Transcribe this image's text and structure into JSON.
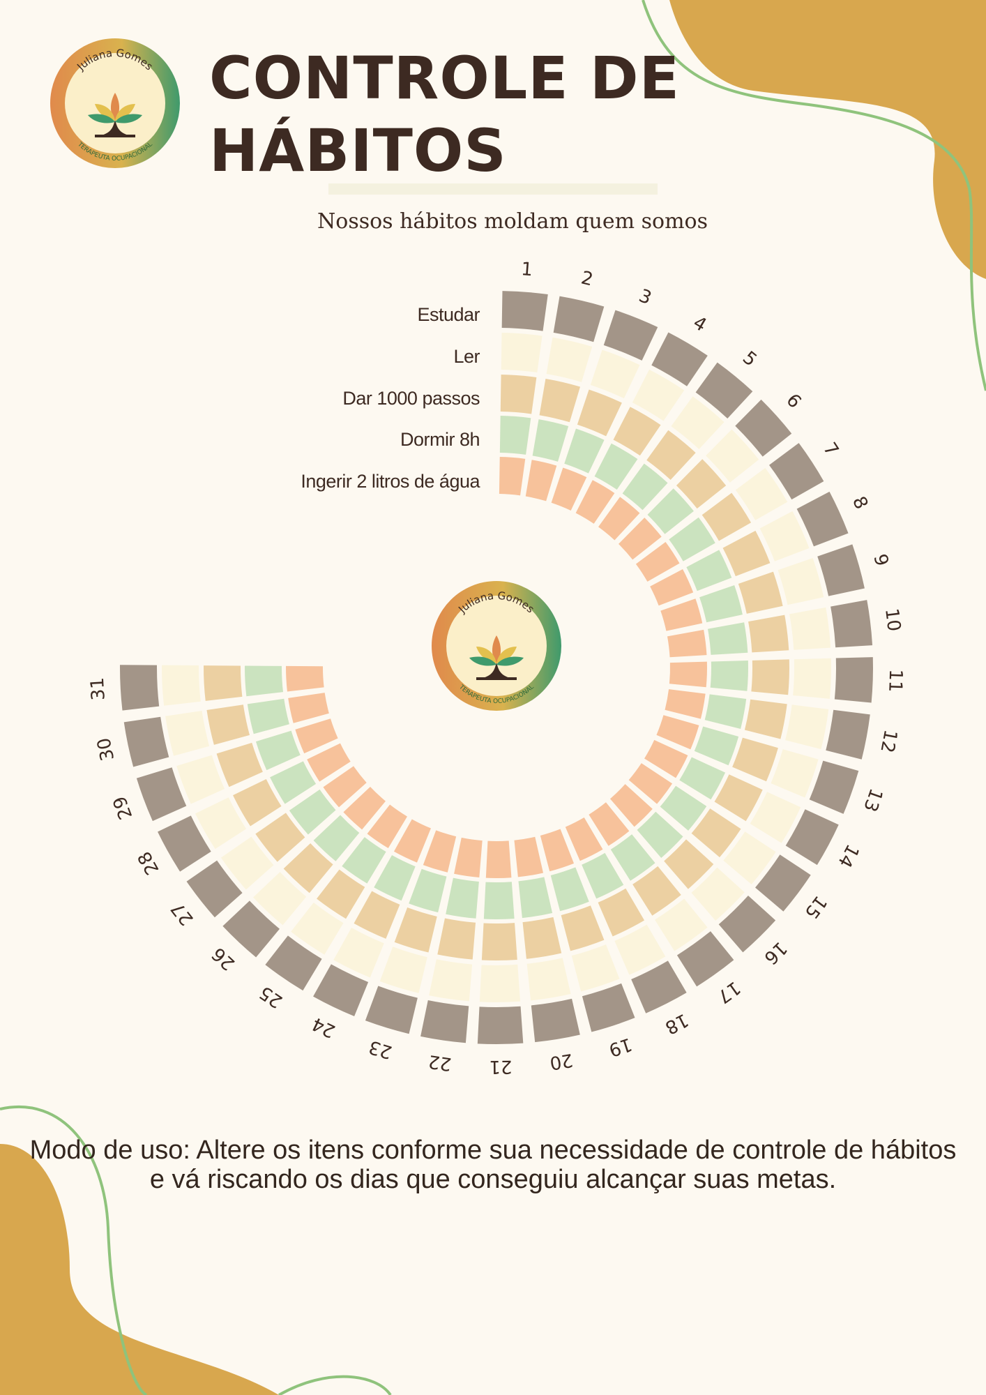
{
  "header": {
    "title_line1": "CONTROLE DE",
    "title_line2": "HÁBITOS",
    "subtitle": "Nossos hábitos moldam quem somos"
  },
  "logo": {
    "brand_name": "Juliana Gomes",
    "tagline": "TERAPEUTA OCUPACIONAL"
  },
  "habits": [
    {
      "label": "Estudar",
      "color": "#a39588"
    },
    {
      "label": "Ler",
      "color": "#fbf4dc"
    },
    {
      "label": "Dar 1000 passos",
      "color": "#ecd0a2"
    },
    {
      "label": "Dormir 8h",
      "color": "#cbe3bf"
    },
    {
      "label": "Ingerir 2 litros de água",
      "color": "#f7c29b"
    }
  ],
  "days": [
    "1",
    "2",
    "3",
    "4",
    "5",
    "6",
    "7",
    "8",
    "9",
    "10",
    "11",
    "12",
    "13",
    "14",
    "15",
    "16",
    "17",
    "18",
    "19",
    "20",
    "21",
    "22",
    "23",
    "24",
    "25",
    "26",
    "27",
    "28",
    "29",
    "30",
    "31"
  ],
  "usage_note": "Modo de uso: Altere os itens conforme sua necessidade de controle de hábitos e vá riscando os dias que conseguiu alcançar suas metas.",
  "colors": {
    "background": "#fdf9f1",
    "blob": "#d8a74e",
    "line": "#8fc37c"
  }
}
